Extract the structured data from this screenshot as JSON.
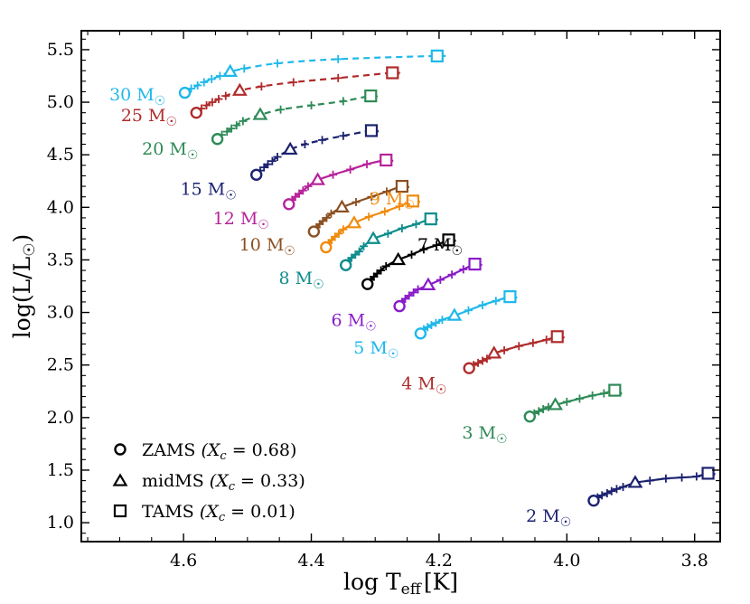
{
  "chart_data": {
    "type": "line",
    "title": "",
    "xlabel": "log T",
    "xlabel_sub": "eff",
    "xlabel_unit": "[K]",
    "ylabel": "log(L/L",
    "ylabel_close": ")",
    "xlim": [
      4.76,
      3.76
    ],
    "ylim": [
      0.82,
      5.68
    ],
    "xticks": [
      4.6,
      4.4,
      4.2,
      4.0,
      3.8
    ],
    "xtick_labels": [
      "4.6",
      "4.4",
      "4.2",
      "4.0",
      "3.8"
    ],
    "yticks": [
      1.0,
      1.5,
      2.0,
      2.5,
      3.0,
      3.5,
      4.0,
      4.5,
      5.0,
      5.5
    ],
    "ytick_labels": [
      "1.0",
      "1.5",
      "2.0",
      "2.5",
      "3.0",
      "3.5",
      "4.0",
      "4.5",
      "5.0",
      "5.5"
    ],
    "legend": {
      "position": "bottom-left",
      "entries": [
        {
          "marker": "circle",
          "label": "ZAMS",
          "eq": "(X",
          "sub": "c",
          "val": " = 0.68)"
        },
        {
          "marker": "triangle",
          "label": "midMS",
          "eq": "(X",
          "sub": "c",
          "val": " = 0.33)"
        },
        {
          "marker": "square",
          "label": "TAMS",
          "eq": "(X",
          "sub": "c",
          "val": " = 0.01)"
        }
      ]
    },
    "series": [
      {
        "name": "30 M☉",
        "mass": "30",
        "color": "#1fb8ea",
        "dashed": true,
        "zams": [
          4.598,
          5.09
        ],
        "mid": [
          4.527,
          5.29
        ],
        "tams": [
          4.203,
          5.44
        ],
        "ticks": [
          [
            4.588,
            5.13
          ],
          [
            4.578,
            5.16
          ],
          [
            4.568,
            5.19
          ],
          [
            4.556,
            5.22
          ],
          [
            4.543,
            5.25
          ],
          [
            4.505,
            5.32
          ],
          [
            4.453,
            5.37
          ],
          [
            4.358,
            5.41
          ]
        ],
        "label_anchor": [
          4.628,
          5.08
        ]
      },
      {
        "name": "25 M☉",
        "mass": "25",
        "color": "#b02b2b",
        "dashed": true,
        "zams": [
          4.58,
          4.9
        ],
        "mid": [
          4.512,
          5.11
        ],
        "tams": [
          4.273,
          5.28
        ],
        "ticks": [
          [
            4.572,
            4.94
          ],
          [
            4.564,
            4.97
          ],
          [
            4.555,
            5.0
          ],
          [
            4.545,
            5.03
          ],
          [
            4.534,
            5.06
          ],
          [
            4.478,
            5.15
          ],
          [
            4.428,
            5.19
          ],
          [
            4.358,
            5.23
          ]
        ],
        "label_anchor": [
          4.61,
          4.88
        ]
      },
      {
        "name": "20 M☉",
        "mass": "20",
        "color": "#2e8b57",
        "dashed": true,
        "zams": [
          4.547,
          4.65
        ],
        "mid": [
          4.48,
          4.88
        ],
        "tams": [
          4.307,
          5.06
        ],
        "ticks": [
          [
            4.54,
            4.69
          ],
          [
            4.532,
            4.72
          ],
          [
            4.525,
            4.75
          ],
          [
            4.517,
            4.78
          ],
          [
            4.507,
            4.82
          ],
          [
            4.448,
            4.93
          ],
          [
            4.4,
            4.97
          ],
          [
            4.35,
            5.01
          ]
        ],
        "label_anchor": [
          4.577,
          4.56
        ]
      },
      {
        "name": "15 M☉",
        "mass": "15",
        "color": "#1c2270",
        "dashed": true,
        "zams": [
          4.486,
          4.31
        ],
        "mid": [
          4.433,
          4.55
        ],
        "tams": [
          4.306,
          4.73
        ],
        "ticks": [
          [
            4.48,
            4.35
          ],
          [
            4.474,
            4.38
          ],
          [
            4.468,
            4.41
          ],
          [
            4.461,
            4.44
          ],
          [
            4.453,
            4.48
          ],
          [
            4.41,
            4.6
          ],
          [
            4.383,
            4.64
          ],
          [
            4.35,
            4.68
          ]
        ],
        "label_anchor": [
          4.517,
          4.18
        ]
      },
      {
        "name": "12 M☉",
        "mass": "12",
        "color": "#b6239a",
        "dashed": false,
        "zams": [
          4.435,
          4.03
        ],
        "mid": [
          4.39,
          4.26
        ],
        "tams": [
          4.283,
          4.45
        ],
        "ticks": [
          [
            4.43,
            4.07
          ],
          [
            4.425,
            4.1
          ],
          [
            4.419,
            4.13
          ],
          [
            4.413,
            4.16
          ],
          [
            4.405,
            4.2
          ],
          [
            4.366,
            4.31
          ],
          [
            4.339,
            4.36
          ],
          [
            4.313,
            4.41
          ]
        ],
        "label_anchor": [
          4.466,
          3.9
        ]
      },
      {
        "name": "10 M☉",
        "mass": "10",
        "color": "#8b5022",
        "dashed": false,
        "zams": [
          4.396,
          3.77
        ],
        "mid": [
          4.352,
          4.0
        ],
        "tams": [
          4.258,
          4.2
        ],
        "ticks": [
          [
            4.392,
            3.81
          ],
          [
            4.387,
            3.84
          ],
          [
            4.382,
            3.87
          ],
          [
            4.376,
            3.9
          ],
          [
            4.369,
            3.94
          ],
          [
            4.33,
            4.05
          ],
          [
            4.306,
            4.1
          ],
          [
            4.282,
            4.15
          ]
        ],
        "label_anchor": [
          4.425,
          3.65
        ]
      },
      {
        "name": "9 M☉",
        "mass": "9",
        "color": "#f08a0d",
        "dashed": false,
        "zams": [
          4.377,
          3.62
        ],
        "mid": [
          4.333,
          3.85
        ],
        "tams": [
          4.241,
          4.06
        ],
        "ticks": [
          [
            4.373,
            3.66
          ],
          [
            4.368,
            3.69
          ],
          [
            4.363,
            3.72
          ],
          [
            4.357,
            3.75
          ],
          [
            4.35,
            3.79
          ],
          [
            4.31,
            3.91
          ],
          [
            4.285,
            3.96
          ],
          [
            4.262,
            4.01
          ]
        ],
        "label_anchor": [
          4.238,
          4.09
        ]
      },
      {
        "name": "8 M☉",
        "mass": "8",
        "color": "#0e8c8c",
        "dashed": false,
        "zams": [
          4.346,
          3.45
        ],
        "mid": [
          4.303,
          3.7
        ],
        "tams": [
          4.213,
          3.89
        ],
        "ticks": [
          [
            4.342,
            3.49
          ],
          [
            4.337,
            3.52
          ],
          [
            4.331,
            3.55
          ],
          [
            4.325,
            3.58
          ],
          [
            4.318,
            3.63
          ],
          [
            4.28,
            3.75
          ],
          [
            4.258,
            3.8
          ],
          [
            4.236,
            3.84
          ]
        ],
        "label_anchor": [
          4.38,
          3.33
        ]
      },
      {
        "name": "7 M☉",
        "mass": "7",
        "color": "#000000",
        "dashed": false,
        "zams": [
          4.312,
          3.27
        ],
        "mid": [
          4.264,
          3.5
        ],
        "tams": [
          4.185,
          3.69
        ],
        "ticks": [
          [
            4.307,
            3.31
          ],
          [
            4.302,
            3.34
          ],
          [
            4.297,
            3.37
          ],
          [
            4.291,
            3.4
          ],
          [
            4.283,
            3.44
          ],
          [
            4.243,
            3.55
          ],
          [
            4.224,
            3.6
          ],
          [
            4.204,
            3.64
          ]
        ],
        "label_anchor": [
          4.163,
          3.65
        ]
      },
      {
        "name": "6 M☉",
        "mass": "6",
        "color": "#8a1cc7",
        "dashed": false,
        "zams": [
          4.262,
          3.06
        ],
        "mid": [
          4.217,
          3.26
        ],
        "tams": [
          4.144,
          3.46
        ],
        "ticks": [
          [
            4.258,
            3.1
          ],
          [
            4.253,
            3.13
          ],
          [
            4.247,
            3.16
          ],
          [
            4.24,
            3.19
          ],
          [
            4.233,
            3.22
          ],
          [
            4.198,
            3.31
          ],
          [
            4.18,
            3.36
          ],
          [
            4.162,
            3.41
          ]
        ],
        "label_anchor": [
          4.298,
          2.93
        ]
      },
      {
        "name": "5 M☉",
        "mass": "5",
        "color": "#1fb8ea",
        "dashed": false,
        "zams": [
          4.229,
          2.8
        ],
        "mid": [
          4.176,
          2.97
        ],
        "tams": [
          4.089,
          3.15
        ],
        "ticks": [
          [
            4.224,
            2.84
          ],
          [
            4.218,
            2.86
          ],
          [
            4.212,
            2.88
          ],
          [
            4.205,
            2.9
          ],
          [
            4.195,
            2.93
          ],
          [
            4.154,
            3.02
          ],
          [
            4.132,
            3.07
          ],
          [
            4.111,
            3.11
          ]
        ],
        "label_anchor": [
          4.263,
          2.67
        ]
      },
      {
        "name": "4 M☉",
        "mass": "4",
        "color": "#b02b2b",
        "dashed": false,
        "zams": [
          4.153,
          2.47
        ],
        "mid": [
          4.114,
          2.61
        ],
        "tams": [
          4.015,
          2.77
        ],
        "ticks": [
          [
            4.146,
            2.5
          ],
          [
            4.139,
            2.52
          ],
          [
            4.132,
            2.54
          ],
          [
            4.125,
            2.56
          ],
          [
            4.098,
            2.64
          ],
          [
            4.075,
            2.68
          ],
          [
            4.053,
            2.71
          ],
          [
            4.032,
            2.74
          ]
        ],
        "label_anchor": [
          4.188,
          2.33
        ]
      },
      {
        "name": "3 M☉",
        "mass": "3",
        "color": "#2e8b57",
        "dashed": false,
        "zams": [
          4.058,
          2.01
        ],
        "mid": [
          4.018,
          2.12
        ],
        "tams": [
          3.925,
          2.26
        ],
        "ticks": [
          [
            4.051,
            2.04
          ],
          [
            4.044,
            2.06
          ],
          [
            4.037,
            2.08
          ],
          [
            4.029,
            2.1
          ],
          [
            4.0,
            2.15
          ],
          [
            3.98,
            2.18
          ],
          [
            3.96,
            2.21
          ],
          [
            3.942,
            2.23
          ]
        ],
        "label_anchor": [
          4.093,
          1.86
        ]
      },
      {
        "name": "2 M☉",
        "mass": "2",
        "color": "#1c2270",
        "dashed": false,
        "zams": [
          3.958,
          1.21
        ],
        "mid": [
          3.893,
          1.38
        ],
        "tams": [
          3.779,
          1.47
        ],
        "ticks": [
          [
            3.952,
            1.24
          ],
          [
            3.945,
            1.26
          ],
          [
            3.937,
            1.28
          ],
          [
            3.93,
            1.3
          ],
          [
            3.922,
            1.32
          ],
          [
            3.912,
            1.34
          ],
          [
            3.87,
            1.4
          ],
          [
            3.845,
            1.42
          ],
          [
            3.82,
            1.43
          ],
          [
            3.797,
            1.44
          ]
        ],
        "label_anchor": [
          3.993,
          1.07
        ]
      }
    ]
  },
  "colors": {
    "axis": "#000000",
    "background": "#ffffff"
  }
}
